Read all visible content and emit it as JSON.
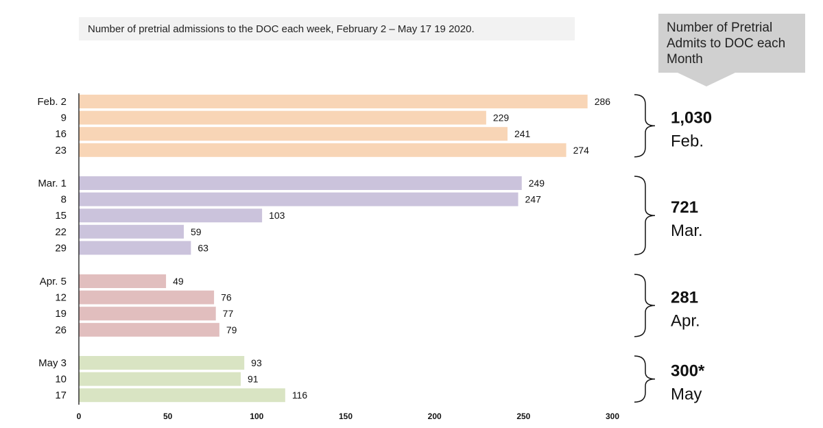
{
  "chart_data": {
    "type": "bar",
    "orientation": "horizontal",
    "title": "Number of pretrial admissions to the DOC each week, February 2 – May 17 19 2020.",
    "xlim": [
      0,
      300
    ],
    "xticks": [
      "0",
      "50",
      "100",
      "150",
      "200",
      "250",
      "300"
    ],
    "groups": [
      {
        "month": "Feb.",
        "total": "1,030",
        "color": "#f8d5b6",
        "categories": [
          "Feb. 2",
          "9",
          "16",
          "23"
        ],
        "values": [
          286,
          229,
          241,
          274
        ]
      },
      {
        "month": "Mar.",
        "total": "721",
        "color": "#cbc3dc",
        "categories": [
          "Mar. 1",
          "8",
          "15",
          "22",
          "29"
        ],
        "values": [
          249,
          247,
          103,
          59,
          63
        ]
      },
      {
        "month": "Apr.",
        "total": "281",
        "color": "#e1bebe",
        "categories": [
          "Apr. 5",
          "12",
          "19",
          "26"
        ],
        "values": [
          49,
          76,
          77,
          79
        ]
      },
      {
        "month": "May",
        "total": "300*",
        "color": "#d9e4c3",
        "categories": [
          "May 3",
          "10",
          "17"
        ],
        "values": [
          93,
          91,
          116
        ]
      }
    ]
  },
  "callout": {
    "text": "Number of Pretrial Admits to DOC each Month"
  }
}
